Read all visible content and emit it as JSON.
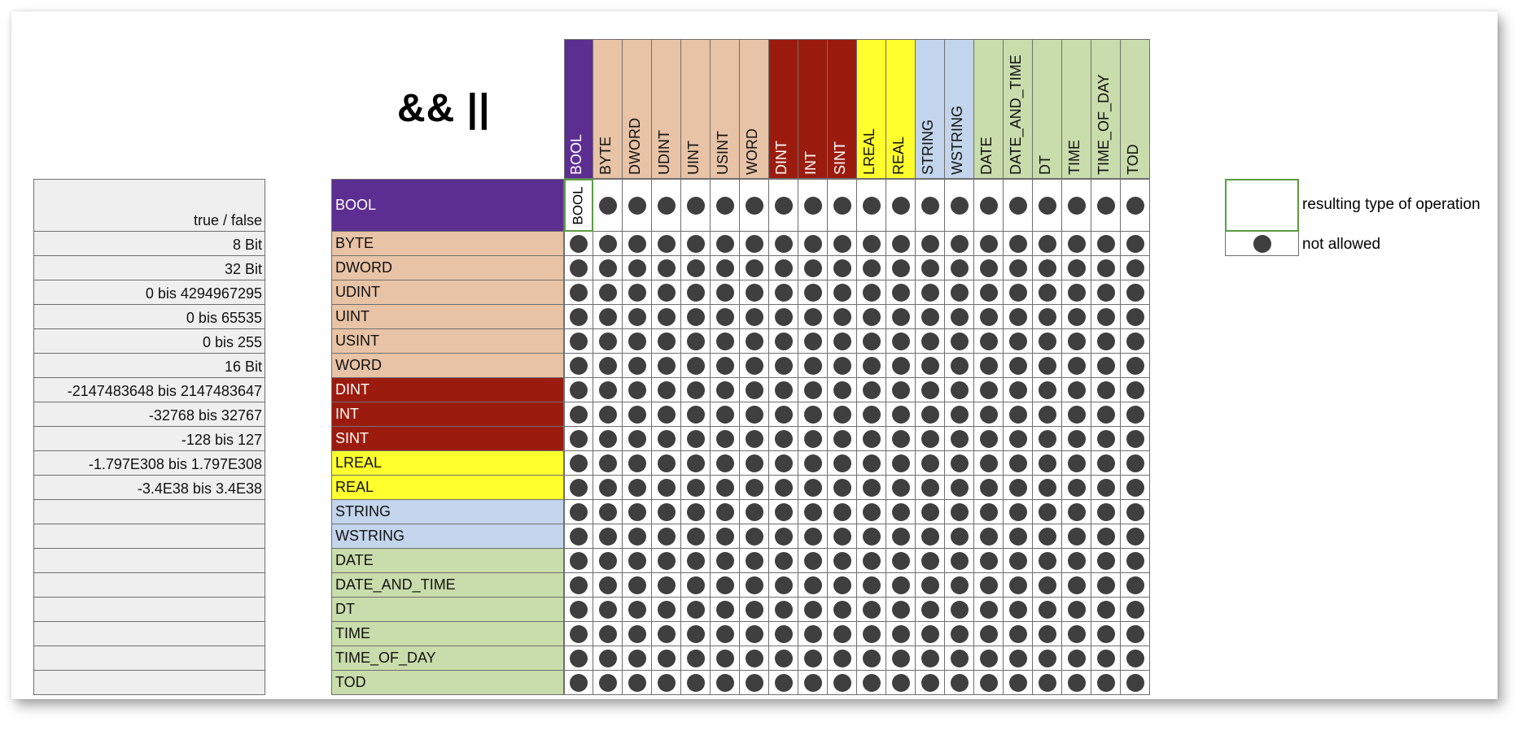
{
  "title": "&& ||",
  "types": [
    {
      "name": "BOOL",
      "color": "#5d2e91",
      "text_color": "#ffffff",
      "range": "true / false"
    },
    {
      "name": "BYTE",
      "color": "#e8c3a6",
      "text_color": "#111111",
      "range": "8 Bit"
    },
    {
      "name": "DWORD",
      "color": "#e8c3a6",
      "text_color": "#111111",
      "range": "32 Bit"
    },
    {
      "name": "UDINT",
      "color": "#e8c3a6",
      "text_color": "#111111",
      "range": "0 bis 4294967295"
    },
    {
      "name": "UINT",
      "color": "#e8c3a6",
      "text_color": "#111111",
      "range": "0 bis 65535"
    },
    {
      "name": "USINT",
      "color": "#e8c3a6",
      "text_color": "#111111",
      "range": "0 bis 255"
    },
    {
      "name": "WORD",
      "color": "#e8c3a6",
      "text_color": "#111111",
      "range": "16 Bit"
    },
    {
      "name": "DINT",
      "color": "#9b1c0e",
      "text_color": "#ffffff",
      "range": "-2147483648 bis 2147483647"
    },
    {
      "name": "INT",
      "color": "#9b1c0e",
      "text_color": "#ffffff",
      "range": "-32768 bis 32767"
    },
    {
      "name": "SINT",
      "color": "#9b1c0e",
      "text_color": "#ffffff",
      "range": "-128 bis 127"
    },
    {
      "name": "LREAL",
      "color": "#ffff2e",
      "text_color": "#111111",
      "range": "-1.797E308 bis 1.797E308"
    },
    {
      "name": "REAL",
      "color": "#ffff2e",
      "text_color": "#111111",
      "range": "-3.4E38 bis 3.4E38"
    },
    {
      "name": "STRING",
      "color": "#c3d5ec",
      "text_color": "#111111",
      "range": ""
    },
    {
      "name": "WSTRING",
      "color": "#c3d5ec",
      "text_color": "#111111",
      "range": ""
    },
    {
      "name": "DATE",
      "color": "#c9dcab",
      "text_color": "#111111",
      "range": ""
    },
    {
      "name": "DATE_AND_TIME",
      "color": "#c9dcab",
      "text_color": "#111111",
      "range": ""
    },
    {
      "name": "DT",
      "color": "#c9dcab",
      "text_color": "#111111",
      "range": ""
    },
    {
      "name": "TIME",
      "color": "#c9dcab",
      "text_color": "#111111",
      "range": ""
    },
    {
      "name": "TIME_OF_DAY",
      "color": "#c9dcab",
      "text_color": "#111111",
      "range": ""
    },
    {
      "name": "TOD",
      "color": "#c9dcab",
      "text_color": "#111111",
      "range": ""
    }
  ],
  "matrix_results": [
    {
      "row": 0,
      "col": 0,
      "result": "BOOL"
    }
  ],
  "legend": {
    "result_label": "resulting type of operation",
    "not_allowed_label": "not allowed",
    "result_border_color": "#5b9c43",
    "dot_color": "#3f3f3f"
  }
}
